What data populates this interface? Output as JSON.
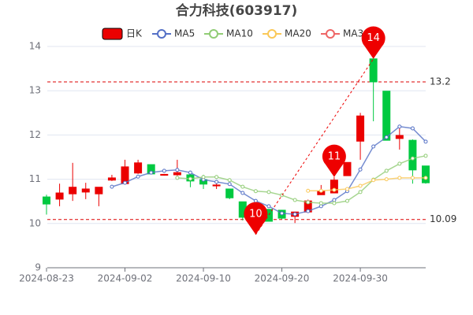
{
  "chart_data": {
    "type": "candlestick",
    "title": "合力科技(603917)",
    "name": "日K",
    "categories": [
      "2024-08-23",
      null,
      null,
      null,
      null,
      null,
      "2024-09-02",
      null,
      null,
      null,
      null,
      null,
      "2024-09-10",
      null,
      null,
      null,
      null,
      null,
      "2024-09-20",
      null,
      null,
      null,
      null,
      null,
      "2024-09-30",
      null,
      null,
      null,
      null,
      null
    ],
    "open": [
      10.6,
      10.55,
      10.67,
      10.71,
      10.67,
      10.98,
      10.9,
      11.14,
      11.33,
      11.09,
      11.1,
      11.1,
      10.99,
      10.85,
      10.78,
      10.49,
      10.32,
      10.32,
      10.3,
      10.16,
      10.26,
      10.65,
      10.69,
      11.08,
      11.86,
      13.72,
      12.99,
      11.92,
      11.88,
      11.3
    ],
    "close": [
      10.44,
      10.69,
      10.82,
      10.78,
      10.82,
      11.03,
      11.28,
      11.37,
      11.12,
      11.11,
      11.15,
      10.96,
      10.89,
      10.87,
      10.58,
      10.14,
      10.05,
      10.05,
      10.12,
      10.26,
      10.51,
      10.73,
      10.98,
      11.38,
      12.43,
      13.2,
      11.88,
      11.99,
      11.21,
      10.92
    ],
    "high": [
      10.65,
      10.9,
      11.37,
      10.92,
      10.82,
      11.1,
      11.44,
      11.44,
      11.33,
      11.12,
      11.44,
      11.19,
      11.1,
      10.98,
      10.78,
      10.49,
      10.32,
      10.32,
      10.3,
      10.26,
      10.54,
      10.87,
      11.05,
      11.38,
      12.5,
      13.72,
      12.99,
      12.2,
      11.9,
      11.3
    ],
    "low": [
      10.2,
      10.39,
      10.51,
      10.55,
      10.39,
      10.96,
      10.89,
      11.12,
      11.12,
      11.08,
      11.08,
      10.82,
      10.78,
      10.78,
      10.55,
      10.07,
      9.75,
      10.05,
      10.1,
      10.01,
      10.24,
      10.65,
      10.69,
      11.08,
      11.44,
      12.31,
      11.88,
      11.67,
      10.9,
      10.9
    ],
    "up_color": "#eb0000",
    "down_color": "#00c940",
    "series": [
      {
        "name": "MA5",
        "color": "#5470c6",
        "values": [
          null,
          null,
          null,
          null,
          null,
          10.83,
          10.92,
          11.06,
          11.15,
          11.19,
          11.21,
          11.15,
          10.99,
          10.94,
          10.89,
          10.69,
          10.51,
          10.39,
          10.23,
          10.21,
          10.28,
          10.39,
          10.53,
          10.73,
          11.22,
          11.74,
          11.95,
          12.19,
          12.15,
          11.85
        ]
      },
      {
        "name": "MA10",
        "color": "#91cc75",
        "values": [
          null,
          null,
          null,
          null,
          null,
          null,
          null,
          null,
          null,
          null,
          11.03,
          11.01,
          11.05,
          11.05,
          10.98,
          10.83,
          10.73,
          10.71,
          10.64,
          10.53,
          10.48,
          10.46,
          10.46,
          10.51,
          10.71,
          10.99,
          11.19,
          11.35,
          11.47,
          11.53
        ]
      },
      {
        "name": "MA20",
        "color": "#fac858",
        "values": [
          null,
          null,
          null,
          null,
          null,
          null,
          null,
          null,
          null,
          null,
          null,
          null,
          null,
          null,
          null,
          null,
          null,
          null,
          null,
          null,
          10.74,
          10.74,
          10.76,
          10.78,
          10.85,
          10.98,
          11.0,
          11.03,
          11.03,
          11.03
        ]
      },
      {
        "name": "MA30",
        "color": "#ee6666",
        "values": [
          null,
          null,
          null,
          null,
          null,
          null,
          null,
          null,
          null,
          null,
          null,
          null,
          null,
          null,
          null,
          null,
          null,
          null,
          null,
          null,
          null,
          null,
          null,
          null,
          null,
          null,
          null,
          null,
          null,
          null
        ]
      }
    ],
    "ylim": [
      9,
      14
    ],
    "yticks": [
      9,
      10,
      11,
      12,
      13,
      14
    ],
    "grid": true,
    "reference_lines": [
      {
        "value": 13.2,
        "label": "13.2"
      },
      {
        "value": 10.09,
        "label": "10.09"
      }
    ],
    "pins": [
      {
        "index": 25,
        "value": 13.72,
        "label": "14"
      },
      {
        "index": 22,
        "value": 11.05,
        "label": "11"
      },
      {
        "index": 16,
        "value": 9.75,
        "label": "10"
      }
    ]
  }
}
